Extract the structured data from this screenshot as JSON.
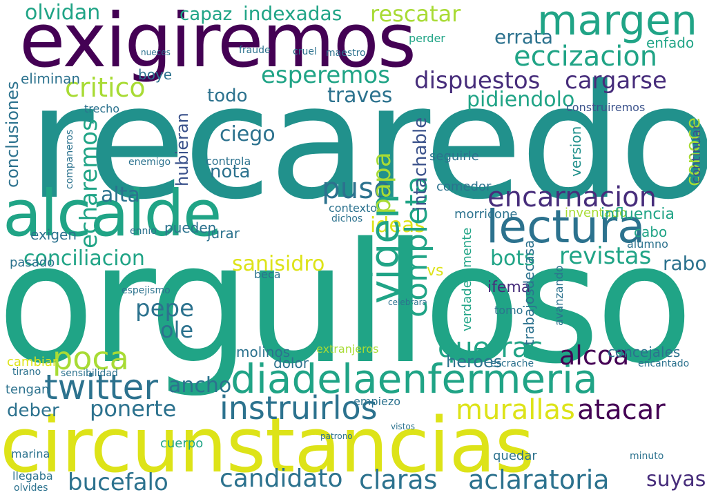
{
  "palette": {
    "yellow": "#dde318",
    "lime": "#a8db34",
    "green": "#5ec962",
    "teal_green": "#20a486",
    "teal": "#21918c",
    "blue": "#2c728e",
    "indigo": "#3b528b",
    "violet": "#472d7b",
    "dark_purple": "#440154"
  },
  "words": [
    {
      "text": "recaredo",
      "color": "#21918c"
    },
    {
      "text": "orgulloso",
      "color": "#20a486"
    },
    {
      "text": "exigiremos",
      "color": "#440154"
    },
    {
      "text": "circunstancias",
      "color": "#dde318"
    },
    {
      "text": "diadelaenfermeria",
      "color": "#20a486"
    },
    {
      "text": "alcalde",
      "color": "#20a486"
    },
    {
      "text": "margen",
      "color": "#20a486"
    },
    {
      "text": "lectura",
      "color": "#2c728e"
    },
    {
      "text": "encarnacion",
      "color": "#472d7b"
    },
    {
      "text": "vigen",
      "color": "#20a486"
    },
    {
      "text": "completa",
      "color": "#20a486"
    },
    {
      "text": "twitter",
      "color": "#2c728e"
    },
    {
      "text": "instruirlos",
      "color": "#2c728e"
    },
    {
      "text": "candidato",
      "color": "#2c728e"
    },
    {
      "text": "aclaratoria",
      "color": "#2c728e"
    },
    {
      "text": "bucefalo",
      "color": "#2c728e"
    },
    {
      "text": "claras",
      "color": "#2c728e"
    },
    {
      "text": "esperemos",
      "color": "#20a486"
    },
    {
      "text": "dispuestos",
      "color": "#472d7b"
    },
    {
      "text": "cargarse",
      "color": "#472d7b"
    },
    {
      "text": "olvidan",
      "color": "#20a486"
    },
    {
      "text": "capaz",
      "color": "#20a486"
    },
    {
      "text": "indexadas",
      "color": "#20a486"
    },
    {
      "text": "rescatar",
      "color": "#a8db34"
    },
    {
      "text": "critico",
      "color": "#a8db34"
    },
    {
      "text": "eccizacion",
      "color": "#20a486"
    },
    {
      "text": "errata",
      "color": "#2c728e"
    },
    {
      "text": "echaremos",
      "color": "#20a486"
    },
    {
      "text": "puso",
      "color": "#2c728e"
    },
    {
      "text": "papa",
      "color": "#a8db34"
    },
    {
      "text": "ideas",
      "color": "#dde318"
    },
    {
      "text": "poca",
      "color": "#a8db34"
    },
    {
      "text": "pepe",
      "color": "#2c728e"
    },
    {
      "text": "ole",
      "color": "#2c728e"
    },
    {
      "text": "alcoa",
      "color": "#440154"
    },
    {
      "text": "atacar",
      "color": "#440154"
    },
    {
      "text": "murallas",
      "color": "#dde318"
    },
    {
      "text": "querras",
      "color": "#20a486"
    },
    {
      "text": "revistas",
      "color": "#20a486"
    },
    {
      "text": "conoce",
      "color": "#a8db34"
    },
    {
      "text": "conciliacion",
      "color": "#20a486"
    },
    {
      "text": "sanisidro",
      "color": "#dde318"
    },
    {
      "text": "deber",
      "color": "#2c728e"
    },
    {
      "text": "ponerte",
      "color": "#2c728e"
    },
    {
      "text": "ancho",
      "color": "#2c728e"
    },
    {
      "text": "suyas",
      "color": "#472d7b"
    },
    {
      "text": "heroes",
      "color": "#2c728e"
    },
    {
      "text": "bots",
      "color": "#20a486"
    },
    {
      "text": "rabo",
      "color": "#2c728e"
    },
    {
      "text": "alta",
      "color": "#2c728e"
    },
    {
      "text": "todo",
      "color": "#2c728e"
    },
    {
      "text": "traves",
      "color": "#2c728e"
    },
    {
      "text": "pidiendolo",
      "color": "#20a486"
    },
    {
      "text": "conclusiones",
      "color": "#2c728e"
    },
    {
      "text": "intachable",
      "color": "#3b528b"
    },
    {
      "text": "hubieran",
      "color": "#3b528b"
    },
    {
      "text": "continuar",
      "color": "#3b528b"
    },
    {
      "text": "construiremos",
      "color": "#3b528b"
    },
    {
      "text": "version",
      "color": "#21918c"
    },
    {
      "text": "influencia",
      "color": "#20a486"
    },
    {
      "text": "eliminan",
      "color": "#2c728e"
    },
    {
      "text": "boye",
      "color": "#2c728e"
    },
    {
      "text": "nota",
      "color": "#2c728e"
    },
    {
      "text": "ciego",
      "color": "#2c728e"
    },
    {
      "text": "pueden",
      "color": "#2c728e"
    },
    {
      "text": "exigen",
      "color": "#2c728e"
    },
    {
      "text": "comedor",
      "color": "#2c728e"
    },
    {
      "text": "contexto",
      "color": "#2c728e"
    },
    {
      "text": "molinos",
      "color": "#2c728e"
    },
    {
      "text": "dolor",
      "color": "#2c728e"
    },
    {
      "text": "concejales",
      "color": "#2c728e"
    },
    {
      "text": "sensibilidad",
      "color": "#2c728e"
    },
    {
      "text": "empiezo",
      "color": "#2c728e"
    },
    {
      "text": "extranjeros",
      "color": "#a8db34"
    },
    {
      "text": "verdaderamente",
      "color": "#20a486"
    },
    {
      "text": "trabajosdecasa",
      "color": "#2c728e"
    },
    {
      "text": "avanzando",
      "color": "#2c728e"
    },
    {
      "text": "morricone",
      "color": "#2c728e"
    },
    {
      "text": "inventado",
      "color": "#a8db34"
    },
    {
      "text": "encantado",
      "color": "#2c728e"
    },
    {
      "text": "tengan",
      "color": "#2c728e"
    },
    {
      "text": "cambiar",
      "color": "#dde318"
    },
    {
      "text": "pasado",
      "color": "#2c728e"
    },
    {
      "text": "marina",
      "color": "#2c728e"
    },
    {
      "text": "llegaba",
      "color": "#2c728e"
    },
    {
      "text": "olvides",
      "color": "#2c728e"
    },
    {
      "text": "cuerpo",
      "color": "#20a486"
    },
    {
      "text": "seguirle",
      "color": "#2c728e"
    },
    {
      "text": "ifema",
      "color": "#472d7b"
    },
    {
      "text": "tomo",
      "color": "#2c728e"
    },
    {
      "text": "vs",
      "color": "#dde318"
    },
    {
      "text": "cabo",
      "color": "#20a486"
    },
    {
      "text": "alumno",
      "color": "#2c728e"
    },
    {
      "text": "enfado",
      "color": "#20a486"
    },
    {
      "text": "perder",
      "color": "#20a486"
    },
    {
      "text": "cruel",
      "color": "#2c728e"
    },
    {
      "text": "maestro",
      "color": "#2c728e"
    },
    {
      "text": "fraude",
      "color": "#2c728e"
    },
    {
      "text": "nueces",
      "color": "#2c728e"
    },
    {
      "text": "trecho",
      "color": "#2c728e"
    },
    {
      "text": "controla",
      "color": "#2c728e"
    },
    {
      "text": "enemigo",
      "color": "#2c728e"
    },
    {
      "text": "companeros",
      "color": "#2c728e"
    },
    {
      "text": "espejismo",
      "color": "#2c728e"
    },
    {
      "text": "beca",
      "color": "#2c728e"
    },
    {
      "text": "dichos",
      "color": "#2c728e"
    },
    {
      "text": "ennio",
      "color": "#2c728e"
    },
    {
      "text": "jurar",
      "color": "#2c728e"
    },
    {
      "text": "celebrara",
      "color": "#2c728e"
    },
    {
      "text": "quedar",
      "color": "#2c728e"
    },
    {
      "text": "escrache",
      "color": "#2c728e"
    },
    {
      "text": "tirano",
      "color": "#2c728e"
    },
    {
      "text": "patrono",
      "color": "#2c728e"
    },
    {
      "text": "vistos",
      "color": "#2c728e"
    },
    {
      "text": "minuto",
      "color": "#2c728e"
    }
  ]
}
